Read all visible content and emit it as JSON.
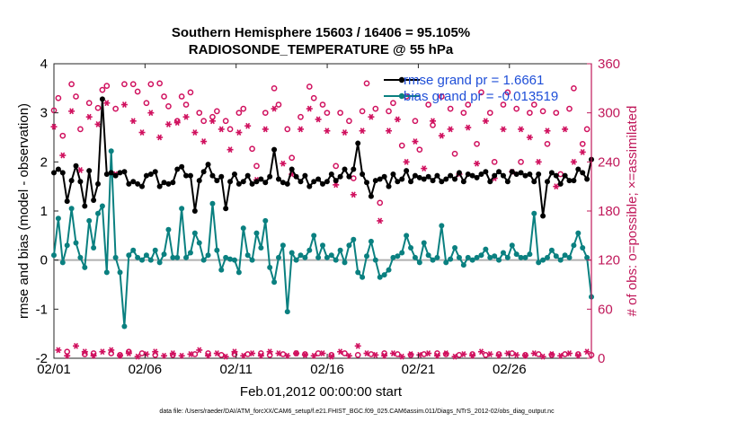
{
  "chart_data": {
    "type": "line",
    "title": "Southern Hemisphere 15603 / 16406 = 95.105%",
    "subtitle": "RADIOSONDE_TEMPERATURE @ 55 hPa",
    "xlabel": "Feb.01,2012 00:00:00 start",
    "ylabel_left": "rmse and bias (model - observation)",
    "ylabel_right": "# of obs: o=possible; ×=assimilated",
    "footer": "data file: /Users/raeder/DAI/ATM_forcXX/CAM6_setup/f.e21.FHIST_BGC.f09_025.CAM6assim.011/Diags_NTrS_2012-02/obs_diag_output.nc",
    "x_ticks": [
      "02/01",
      "02/06",
      "02/11",
      "02/16",
      "02/21",
      "02/26"
    ],
    "x_tick_days": [
      0,
      5,
      10,
      15,
      20,
      25
    ],
    "xlim_days": [
      0,
      29.5
    ],
    "ylim_left": [
      -2,
      4
    ],
    "y_ticks_left": [
      "-2",
      "-1",
      "0",
      "1",
      "2",
      "3",
      "4"
    ],
    "ylim_right": [
      0,
      360
    ],
    "y_ticks_right": [
      "0",
      "60",
      "120",
      "180",
      "240",
      "300",
      "360"
    ],
    "grid": false,
    "legend_position": "top-right",
    "colors": {
      "rmse": "#000000",
      "bias": "#0a8080",
      "obs": "#d0105e",
      "legend_text": "#1f4fd8",
      "right_axis": "#c0185a",
      "zero_line": "#b0b0b0"
    },
    "series": [
      {
        "name": "rmse grand pr = 1.6661",
        "axis": "left",
        "values": [
          1.78,
          1.85,
          1.78,
          1.2,
          1.62,
          1.92,
          1.6,
          1.1,
          1.82,
          1.22,
          1.55,
          3.28,
          1.75,
          1.78,
          1.72,
          1.78,
          1.8,
          1.55,
          1.6,
          1.55,
          1.5,
          1.72,
          1.75,
          1.8,
          1.5,
          1.58,
          1.55,
          1.58,
          1.85,
          1.9,
          1.72,
          1.72,
          1.0,
          1.62,
          1.8,
          1.95,
          1.72,
          1.62,
          1.7,
          1.05,
          1.6,
          1.75,
          1.55,
          1.6,
          1.72,
          1.55,
          1.6,
          1.65,
          1.58,
          1.7,
          2.25,
          1.65,
          1.58,
          1.55,
          1.85,
          1.7,
          1.6,
          1.72,
          1.5,
          1.6,
          1.65,
          1.55,
          1.6,
          1.75,
          1.62,
          1.7,
          1.85,
          1.7,
          1.85,
          2.38,
          1.75,
          1.58,
          1.3,
          1.62,
          1.65,
          1.7,
          1.5,
          1.75,
          1.6,
          1.65,
          1.82,
          1.6,
          1.72,
          1.68,
          1.65,
          1.7,
          1.62,
          1.72,
          1.6,
          1.65,
          1.72,
          1.65,
          1.78,
          1.6,
          1.75,
          1.72,
          1.68,
          1.75,
          1.8,
          1.6,
          1.72,
          1.8,
          1.72,
          1.6,
          1.8,
          1.75,
          1.78,
          1.72,
          1.75,
          1.6,
          1.75,
          0.9,
          1.6,
          1.78,
          1.72,
          1.55,
          1.72,
          1.62,
          1.62,
          1.85,
          1.78,
          1.65,
          2.05
        ]
      },
      {
        "name": "bias grand pr = -0.013519",
        "axis": "left",
        "values": [
          0.1,
          0.85,
          -0.05,
          0.3,
          1.05,
          0.35,
          0.05,
          -0.15,
          0.8,
          0.25,
          0.95,
          1.1,
          -0.25,
          2.22,
          0.05,
          -0.25,
          -1.35,
          0.1,
          0.2,
          0.05,
          0.0,
          0.1,
          0.0,
          0.2,
          -0.05,
          0.12,
          0.62,
          0.05,
          0.05,
          1.05,
          0.05,
          0.15,
          0.55,
          0.35,
          0.0,
          0.1,
          1.15,
          0.2,
          -0.2,
          0.05,
          0.02,
          0.0,
          -0.25,
          0.65,
          0.1,
          0.0,
          0.55,
          0.25,
          0.8,
          -0.15,
          -0.45,
          0.05,
          0.3,
          -1.05,
          0.15,
          0.0,
          0.1,
          0.05,
          0.2,
          0.5,
          0.05,
          0.3,
          0.05,
          0.1,
          0.0,
          0.2,
          -0.05,
          0.3,
          0.42,
          -0.25,
          -0.35,
          0.08,
          0.38,
          0.0,
          -0.35,
          -0.3,
          -0.2,
          0.05,
          0.08,
          0.15,
          0.5,
          0.25,
          0.05,
          -0.05,
          0.35,
          0.1,
          0.0,
          0.05,
          0.7,
          -0.05,
          0.02,
          0.25,
          0.05,
          -0.1,
          0.05,
          0.0,
          0.05,
          0.1,
          0.22,
          0.05,
          0.08,
          0.0,
          0.15,
          0.05,
          0.3,
          0.12,
          0.05,
          0.05,
          0.12,
          0.95,
          -0.05,
          0.0,
          0.05,
          0.2,
          0.08,
          0.0,
          0.1,
          0.05,
          0.3,
          0.55,
          0.25,
          0.05,
          -0.75
        ]
      },
      {
        "name": "obs possible",
        "axis": "right",
        "marker": "o",
        "values": [
          303,
          318,
          272,
          8,
          335,
          320,
          280,
          5,
          312,
          6,
          306,
          328,
          333,
          6,
          305,
          4,
          335,
          8,
          335,
          326,
          6,
          312,
          335,
          4,
          336,
          320,
          308,
          4,
          290,
          320,
          310,
          325,
          5,
          300,
          290,
          6,
          295,
          302,
          4,
          290,
          280,
          5,
          300,
          305,
          5,
          256,
          235,
          6,
          300,
          4,
          330,
          310,
          5,
          280,
          245,
          6,
          295,
          5,
          332,
          318,
          6,
          310,
          300,
          4,
          235,
          300,
          6,
          290,
          220,
          4,
          302,
          336,
          5,
          305,
          190,
          6,
          302,
          312,
          5,
          260,
          320,
          4,
          290,
          255,
          5,
          310,
          285,
          6,
          320,
          5,
          305,
          250,
          4,
          300,
          310,
          5,
          262,
          325,
          4,
          300,
          240,
          5,
          310,
          325,
          6,
          305,
          240,
          4,
          300,
          310,
          5,
          302,
          262,
          4,
          300,
          225,
          5,
          305,
          330,
          5,
          262,
          280,
          4
        ]
      },
      {
        "name": "obs assimilated",
        "axis": "right",
        "marker": "*",
        "values": [
          283,
          10,
          248,
          3,
          302,
          15,
          230,
          8,
          295,
          3,
          286,
          8,
          312,
          10,
          225,
          3,
          310,
          6,
          290,
          2,
          276,
          5,
          300,
          8,
          270,
          3,
          286,
          6,
          288,
          3,
          295,
          5,
          276,
          10,
          265,
          3,
          290,
          6,
          280,
          2,
          255,
          8,
          276,
          3,
          284,
          6,
          218,
          3,
          280,
          8,
          305,
          6,
          238,
          3,
          225,
          6,
          280,
          4,
          305,
          3,
          292,
          6,
          278,
          2,
          212,
          8,
          276,
          3,
          200,
          15,
          278,
          6,
          295,
          4,
          168,
          3,
          278,
          6,
          292,
          2,
          240,
          5,
          265,
          4,
          232,
          6,
          290,
          3,
          272,
          6,
          280,
          2,
          225,
          5,
          282,
          3,
          238,
          8,
          290,
          5,
          220,
          3,
          280,
          6,
          228,
          4,
          280,
          3,
          270,
          6,
          240,
          2,
          278,
          5,
          210,
          3,
          280,
          6,
          240,
          3,
          252,
          8
        ]
      }
    ]
  }
}
